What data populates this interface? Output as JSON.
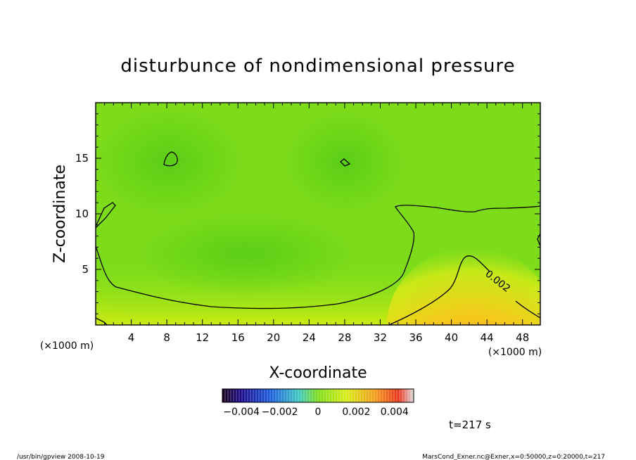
{
  "chart_data": {
    "type": "heatmap",
    "title": "disturbunce of nondimensional pressure",
    "xlabel": "X-coordinate",
    "ylabel": "Z-coordinate",
    "x_unit": "(×1000 m)",
    "z_unit": "(×1000 m)",
    "xlim": [
      0,
      50
    ],
    "ylim": [
      0,
      20
    ],
    "x_ticks": [
      4,
      8,
      12,
      16,
      20,
      24,
      28,
      32,
      36,
      40,
      44,
      48
    ],
    "y_ticks": [
      5,
      10,
      15
    ],
    "colorbar": {
      "range": [
        -0.005,
        0.005
      ],
      "tick_labels": [
        "-0.004",
        "-0.002",
        "0",
        "0.002",
        "0.004"
      ],
      "tick_values": [
        -0.004,
        -0.002,
        0,
        0.002,
        0.004
      ]
    },
    "contour_label": "0.002",
    "contour_level": 0.002,
    "grid": false,
    "field_summary": {
      "background_level": 0.0012,
      "max_region": {
        "x": 42,
        "z": 0.5,
        "value": 0.0045
      },
      "min_regions": [
        {
          "x": 8.5,
          "z": 14.8,
          "value": 0.0019
        },
        {
          "x": 28,
          "z": 14.7,
          "value": 0.0019
        }
      ]
    }
  },
  "time_label": "t=217 s",
  "footer": {
    "left": "/usr/bin/gpview   2008-10-19",
    "right": "MarsCond_Exner.nc@Exner,x=0:50000,z=0:20000,t=217"
  },
  "colors": {
    "background_field": "#7ddc1a",
    "positive_peak": "#e8701a",
    "negative_peak": "#1a0a8c"
  }
}
